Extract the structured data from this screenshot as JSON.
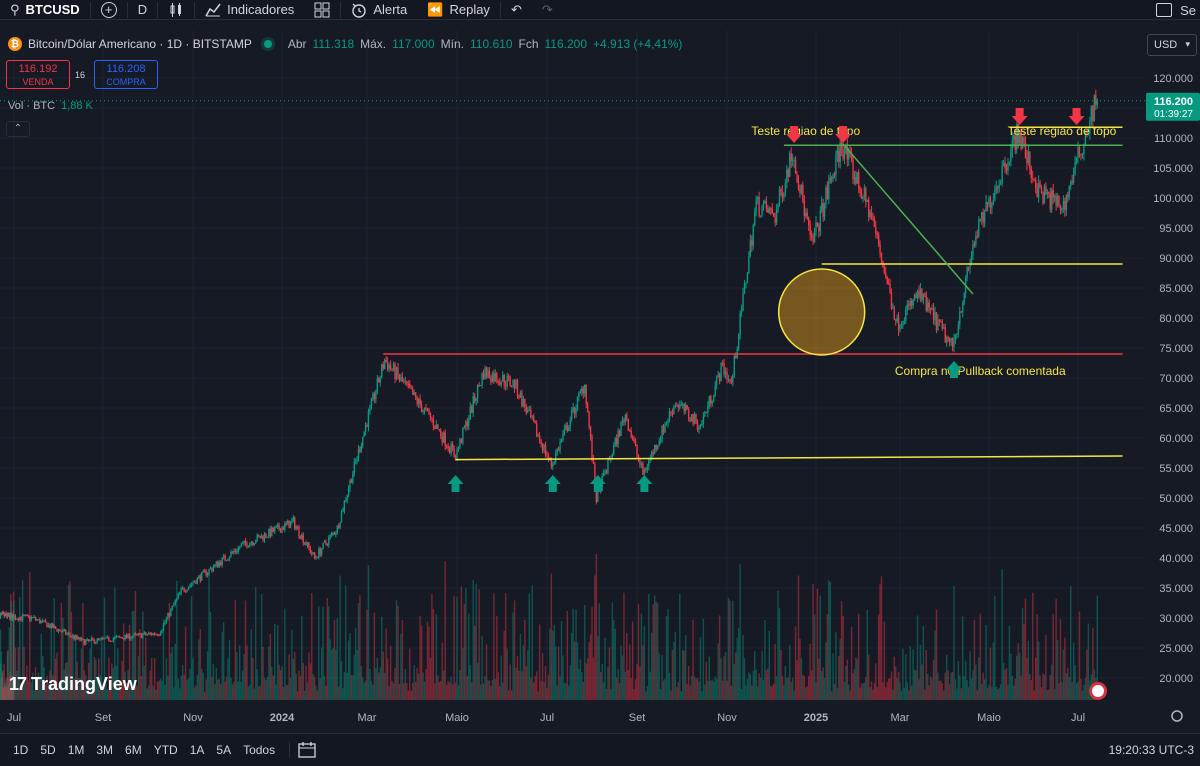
{
  "toolbar": {
    "symbol": "BTCUSD",
    "interval": "D",
    "indicators_label": "Indicadores",
    "alert_label": "Alerta",
    "replay_label": "Replay",
    "right_text": "Se"
  },
  "header": {
    "title": "Bitcoin/Dólar Americano · 1D · BITSTAMP",
    "open_label": "Abr",
    "open": "111.318",
    "high_label": "Máx.",
    "high": "117.000",
    "low_label": "Mín.",
    "low": "110.610",
    "close_label": "Fch",
    "close": "116.200",
    "change": "+4.913 (+4,41%)",
    "sell_price": "116.192",
    "sell_label": "VENDA",
    "spread": "16",
    "buy_price": "116.208",
    "buy_label": "COMPRA",
    "volume_label": "Vol · BTC",
    "volume": "1,88 K"
  },
  "currency": "USD",
  "current_price": {
    "price": "116.200",
    "countdown": "01:39:27"
  },
  "bottom": {
    "periods": [
      "1D",
      "5D",
      "1M",
      "3M",
      "6M",
      "YTD",
      "1A",
      "5A",
      "Todos"
    ],
    "clock": "19:20:33 UTC-3"
  },
  "logo_text": "TradingView",
  "colors": {
    "bull": "#089981",
    "bear": "#f23645",
    "background": "#161a25",
    "support": "#f5e642",
    "resistance": "#f23645",
    "trendline": "#4caf50"
  },
  "chart_data": {
    "type": "candlestick",
    "title": "Bitcoin/Dólar Americano · 1D · BITSTAMP",
    "x_tick_labels": [
      "Jul",
      "Set",
      "Nov",
      "2024",
      "Mar",
      "Maio",
      "Jul",
      "Set",
      "Nov",
      "2025",
      "Mar",
      "Maio",
      "Jul"
    ],
    "y_tick_labels": [
      "120.000",
      "115.000",
      "110.000",
      "105.000",
      "100.000",
      "95.000",
      "90.000",
      "85.000",
      "80.000",
      "75.000",
      "70.000",
      "65.000",
      "60.000",
      "55.000",
      "50.000",
      "45.000",
      "40.000",
      "35.000",
      "30.000",
      "25.000",
      "20.000"
    ],
    "ylim": [
      18000,
      122000
    ],
    "price_path": [
      {
        "date": "2023-06-01",
        "price": 30500
      },
      {
        "date": "2023-07-15",
        "price": 30000
      },
      {
        "date": "2023-08-20",
        "price": 26000
      },
      {
        "date": "2023-10-10",
        "price": 27500
      },
      {
        "date": "2023-10-25",
        "price": 34500
      },
      {
        "date": "2023-12-05",
        "price": 42000
      },
      {
        "date": "2024-01-10",
        "price": 46000
      },
      {
        "date": "2024-01-25",
        "price": 40000
      },
      {
        "date": "2024-02-10",
        "price": 45000
      },
      {
        "date": "2024-03-01",
        "price": 62000
      },
      {
        "date": "2024-03-14",
        "price": 73000
      },
      {
        "date": "2024-04-15",
        "price": 63000
      },
      {
        "date": "2024-05-01",
        "price": 57000
      },
      {
        "date": "2024-05-20",
        "price": 71000
      },
      {
        "date": "2024-06-10",
        "price": 69000
      },
      {
        "date": "2024-07-05",
        "price": 55500
      },
      {
        "date": "2024-07-28",
        "price": 69000
      },
      {
        "date": "2024-08-05",
        "price": 50000
      },
      {
        "date": "2024-08-25",
        "price": 64000
      },
      {
        "date": "2024-09-06",
        "price": 54000
      },
      {
        "date": "2024-09-28",
        "price": 66000
      },
      {
        "date": "2024-10-15",
        "price": 62000
      },
      {
        "date": "2024-10-30",
        "price": 72000
      },
      {
        "date": "2024-11-05",
        "price": 69000
      },
      {
        "date": "2024-11-22",
        "price": 99000
      },
      {
        "date": "2024-12-05",
        "price": 97000
      },
      {
        "date": "2024-12-17",
        "price": 108000
      },
      {
        "date": "2024-12-30",
        "price": 92000
      },
      {
        "date": "2025-01-20",
        "price": 109000
      },
      {
        "date": "2025-02-10",
        "price": 97000
      },
      {
        "date": "2025-02-28",
        "price": 79000
      },
      {
        "date": "2025-03-15",
        "price": 84000
      },
      {
        "date": "2025-04-07",
        "price": 75000
      },
      {
        "date": "2025-04-22",
        "price": 93000
      },
      {
        "date": "2025-05-10",
        "price": 104000
      },
      {
        "date": "2025-05-22",
        "price": 111000
      },
      {
        "date": "2025-06-05",
        "price": 101000
      },
      {
        "date": "2025-06-22",
        "price": 98500
      },
      {
        "date": "2025-07-05",
        "price": 109000
      },
      {
        "date": "2025-07-14",
        "price": 116200
      }
    ],
    "horizontal_levels": [
      {
        "price": 111800,
        "color": "#f5e642",
        "from": "2025-05-15",
        "to": "2025-07-31"
      },
      {
        "price": 108800,
        "color": "#4caf50",
        "from": "2024-12-10",
        "to": "2025-07-31"
      },
      {
        "price": 89000,
        "color": "#f5e642",
        "from": "2025-01-05",
        "to": "2025-07-31"
      },
      {
        "price": 74000,
        "color": "#f23645",
        "from": "2024-03-12",
        "to": "2025-07-31"
      },
      {
        "from_price": 56400,
        "to_price": 57000,
        "color": "#f5e642",
        "from": "2024-04-30",
        "to": "2025-07-31"
      }
    ],
    "trendline": {
      "from": {
        "date": "2025-01-20",
        "price": 109000
      },
      "to": {
        "date": "2025-04-20",
        "price": 84000
      },
      "color": "#4caf50"
    },
    "annotations": [
      {
        "text": "Teste regiao de topo",
        "date": "2024-12-25",
        "price": 110500,
        "color": "#f5e642"
      },
      {
        "text": "Teste região de topo",
        "date": "2025-06-20",
        "price": 110500,
        "color": "#f5e642"
      },
      {
        "text": "Compra no Pullback comentada",
        "date": "2025-04-25",
        "price": 70500,
        "color": "#f5e642"
      }
    ],
    "down_arrows": [
      {
        "date": "2024-12-17",
        "price": 110500
      },
      {
        "date": "2025-01-20",
        "price": 110500
      },
      {
        "date": "2025-05-22",
        "price": 113500
      },
      {
        "date": "2025-06-30",
        "price": 113500
      }
    ],
    "up_arrows": [
      {
        "date": "2024-04-30",
        "price": 52500
      },
      {
        "date": "2024-07-05",
        "price": 52500
      },
      {
        "date": "2024-08-05",
        "price": 52500
      },
      {
        "date": "2024-09-06",
        "price": 52500
      },
      {
        "date": "2025-04-07",
        "price": 71500
      }
    ],
    "circle": {
      "date": "2025-01-05",
      "price": 81000,
      "color": "#d4a52a"
    }
  }
}
